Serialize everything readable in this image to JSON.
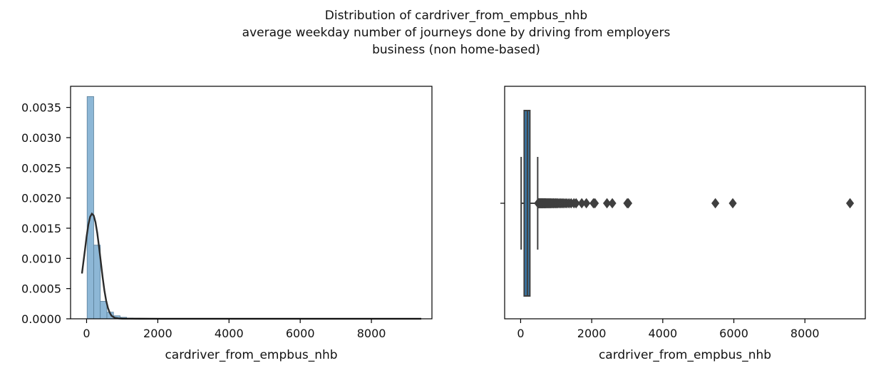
{
  "figure": {
    "title_lines": [
      "Distribution of cardriver_from_empbus_nhb",
      "average weekday number of journeys done by driving from employers",
      "business (non home-based)"
    ]
  },
  "chart_data": [
    {
      "type": "bar",
      "subtype": "histogram-with-kde",
      "xlabel": "cardriver_from_empbus_nhb",
      "ylabel": "",
      "xlim": [
        -450,
        9700
      ],
      "ylim": [
        0,
        0.00385
      ],
      "xticks": [
        "0",
        "2000",
        "4000",
        "6000",
        "8000"
      ],
      "xtick_values": [
        0,
        2000,
        4000,
        6000,
        8000
      ],
      "yticks": [
        "0.0000",
        "0.0005",
        "0.0010",
        "0.0015",
        "0.0020",
        "0.0025",
        "0.0030",
        "0.0035"
      ],
      "ytick_values": [
        0,
        0.0005,
        0.001,
        0.0015,
        0.002,
        0.0025,
        0.003,
        0.0035
      ],
      "bin_width": 185,
      "bin_starts": [
        15,
        200,
        385,
        570,
        755,
        940,
        1125,
        1310,
        1495,
        1680,
        1865,
        2050,
        2235,
        2420,
        2605,
        2790
      ],
      "values": [
        0.00368,
        0.00122,
        0.00029,
        0.00011,
        5e-05,
        2.5e-05,
        1.2e-05,
        8e-06,
        6e-06,
        4e-06,
        4e-06,
        3e-06,
        3e-06,
        2e-06,
        2e-06,
        2e-06
      ],
      "bar_color": "#8db7d6",
      "bar_edge_color": "#5a7f99",
      "kde": {
        "color": "#2b2b2b",
        "x": [
          -130,
          -50,
          0,
          50,
          100,
          150,
          200,
          250,
          300,
          350,
          400,
          450,
          500,
          550,
          600,
          650,
          700,
          800,
          900,
          1000,
          1200,
          1500,
          2000,
          3000,
          5000,
          7000,
          9400
        ],
        "y": [
          0.00075,
          0.00112,
          0.00136,
          0.00156,
          0.00169,
          0.00174,
          0.00171,
          0.0016,
          0.00142,
          0.00119,
          0.00094,
          0.00069,
          0.00047,
          0.0003,
          0.00018,
          0.0001,
          5e-05,
          1.5e-05,
          6e-06,
          3e-06,
          2e-06,
          1.5e-06,
          1e-06,
          8e-07,
          5e-07,
          3e-07,
          2e-07
        ]
      },
      "grid": false
    },
    {
      "type": "box",
      "xlabel": "cardriver_from_empbus_nhb",
      "xlim": [
        -450,
        9700
      ],
      "xticks": [
        "0",
        "2000",
        "4000",
        "6000",
        "8000"
      ],
      "xtick_values": [
        0,
        2000,
        4000,
        6000,
        8000
      ],
      "box": {
        "whisker_low": 15,
        "q1": 100,
        "median": 190,
        "q3": 260,
        "whisker_high": 480
      },
      "box_color": "#3a78a8",
      "outliers": [
        490,
        500,
        510,
        520,
        535,
        550,
        560,
        575,
        590,
        600,
        615,
        630,
        645,
        660,
        675,
        690,
        705,
        720,
        740,
        760,
        780,
        800,
        820,
        845,
        870,
        895,
        920,
        950,
        980,
        1010,
        1040,
        1080,
        1120,
        1160,
        1200,
        1250,
        1300,
        1360,
        1420,
        1500,
        1560,
        1720,
        1850,
        2050,
        2090,
        2430,
        2580,
        3000,
        3030,
        5480,
        5970,
        9270
      ],
      "grid": false
    }
  ]
}
